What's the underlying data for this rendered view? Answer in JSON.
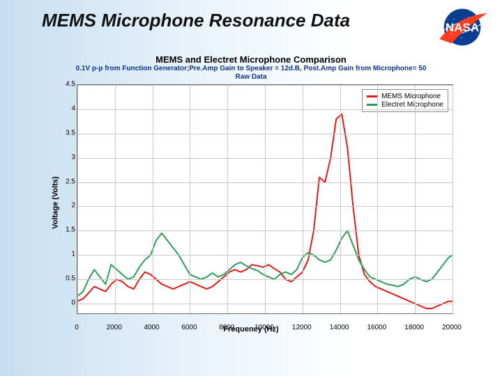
{
  "slide": {
    "title": "MEMS Microphone Resonance Data"
  },
  "chart": {
    "type": "line",
    "title": "MEMS and Electret Microphone Comparison",
    "subtitle_line1": "0.1V p-p from Function Generator;Pre.Amp Gain to Speaker = 12d.B, Post.Amp Gain from Microphone= 50",
    "subtitle_line2": "Raw Data",
    "xlabel": "Frequency (Hz)",
    "ylabel": "Voltage (Volts)",
    "xlim": [
      0,
      20000
    ],
    "ylim": [
      -0.2,
      4.5
    ],
    "xtick_step": 2000,
    "ytick_step": 0.5,
    "ytick_start": 0,
    "background_color": "#ffffff",
    "grid_color": "#c8c8c8",
    "axis_color": "#6a6a6a",
    "title_fontsize": 13,
    "subtitle_fontsize": 10,
    "subtitle_color": "#113388",
    "label_fontsize": 11,
    "tick_fontsize": 10,
    "line_width": 2,
    "legend": {
      "position": "top-right",
      "items": [
        {
          "label": "MEMS Microphone",
          "color": "#e11919"
        },
        {
          "label": "Electret Microphone",
          "color": "#2f9b5a"
        }
      ]
    },
    "series": [
      {
        "name": "MEMS Microphone",
        "color": "#e11919",
        "x": [
          0,
          300,
          600,
          900,
          1200,
          1500,
          1800,
          2100,
          2400,
          2700,
          3000,
          3300,
          3600,
          3900,
          4200,
          4500,
          4800,
          5100,
          5400,
          5700,
          6000,
          6300,
          6600,
          6900,
          7200,
          7500,
          7800,
          8100,
          8400,
          8700,
          9000,
          9300,
          9600,
          9900,
          10200,
          10500,
          10800,
          11100,
          11400,
          11700,
          12000,
          12300,
          12600,
          12900,
          13200,
          13500,
          13800,
          14100,
          14400,
          14700,
          15000,
          15300,
          15600,
          15900,
          16200,
          16500,
          16800,
          17100,
          17400,
          17700,
          18000,
          18300,
          18600,
          18900,
          19200,
          19500,
          19800,
          20000
        ],
        "y": [
          0.05,
          0.1,
          0.22,
          0.35,
          0.3,
          0.25,
          0.4,
          0.5,
          0.45,
          0.35,
          0.3,
          0.5,
          0.65,
          0.6,
          0.5,
          0.4,
          0.35,
          0.3,
          0.35,
          0.4,
          0.45,
          0.4,
          0.35,
          0.3,
          0.35,
          0.45,
          0.55,
          0.65,
          0.7,
          0.65,
          0.7,
          0.8,
          0.78,
          0.75,
          0.8,
          0.72,
          0.65,
          0.5,
          0.45,
          0.55,
          0.65,
          0.9,
          1.5,
          2.6,
          2.5,
          3.0,
          3.8,
          3.9,
          3.2,
          2.0,
          1.0,
          0.6,
          0.45,
          0.35,
          0.3,
          0.25,
          0.2,
          0.15,
          0.1,
          0.05,
          0.0,
          -0.05,
          -0.1,
          -0.1,
          -0.05,
          0.0,
          0.05,
          0.05
        ]
      },
      {
        "name": "Electret Microphone",
        "color": "#2f9b5a",
        "x": [
          0,
          300,
          600,
          900,
          1200,
          1500,
          1800,
          2100,
          2400,
          2700,
          3000,
          3300,
          3600,
          3900,
          4200,
          4500,
          4800,
          5100,
          5400,
          5700,
          6000,
          6300,
          6600,
          6900,
          7200,
          7500,
          7800,
          8100,
          8400,
          8700,
          9000,
          9300,
          9600,
          9900,
          10200,
          10500,
          10800,
          11100,
          11400,
          11700,
          12000,
          12300,
          12600,
          12900,
          13200,
          13500,
          13800,
          14100,
          14400,
          14700,
          15000,
          15300,
          15600,
          15900,
          16200,
          16500,
          16800,
          17100,
          17400,
          17700,
          18000,
          18300,
          18600,
          18900,
          19200,
          19500,
          19800,
          20000
        ],
        "y": [
          0.15,
          0.25,
          0.5,
          0.7,
          0.55,
          0.4,
          0.8,
          0.7,
          0.6,
          0.5,
          0.55,
          0.75,
          0.9,
          1.0,
          1.3,
          1.45,
          1.3,
          1.15,
          1.0,
          0.8,
          0.6,
          0.55,
          0.5,
          0.55,
          0.63,
          0.55,
          0.6,
          0.7,
          0.8,
          0.85,
          0.78,
          0.72,
          0.68,
          0.6,
          0.55,
          0.5,
          0.6,
          0.65,
          0.6,
          0.7,
          0.95,
          1.05,
          1.0,
          0.9,
          0.85,
          0.9,
          1.1,
          1.35,
          1.5,
          1.2,
          0.9,
          0.7,
          0.55,
          0.5,
          0.45,
          0.4,
          0.38,
          0.35,
          0.4,
          0.5,
          0.55,
          0.5,
          0.45,
          0.5,
          0.65,
          0.8,
          0.95,
          1.0
        ]
      }
    ]
  },
  "logo": {
    "name": "NASA",
    "text": "NASA",
    "circle_color": "#0b3d91",
    "swoosh_color": "#fc3d21",
    "text_color": "#ffffff"
  }
}
